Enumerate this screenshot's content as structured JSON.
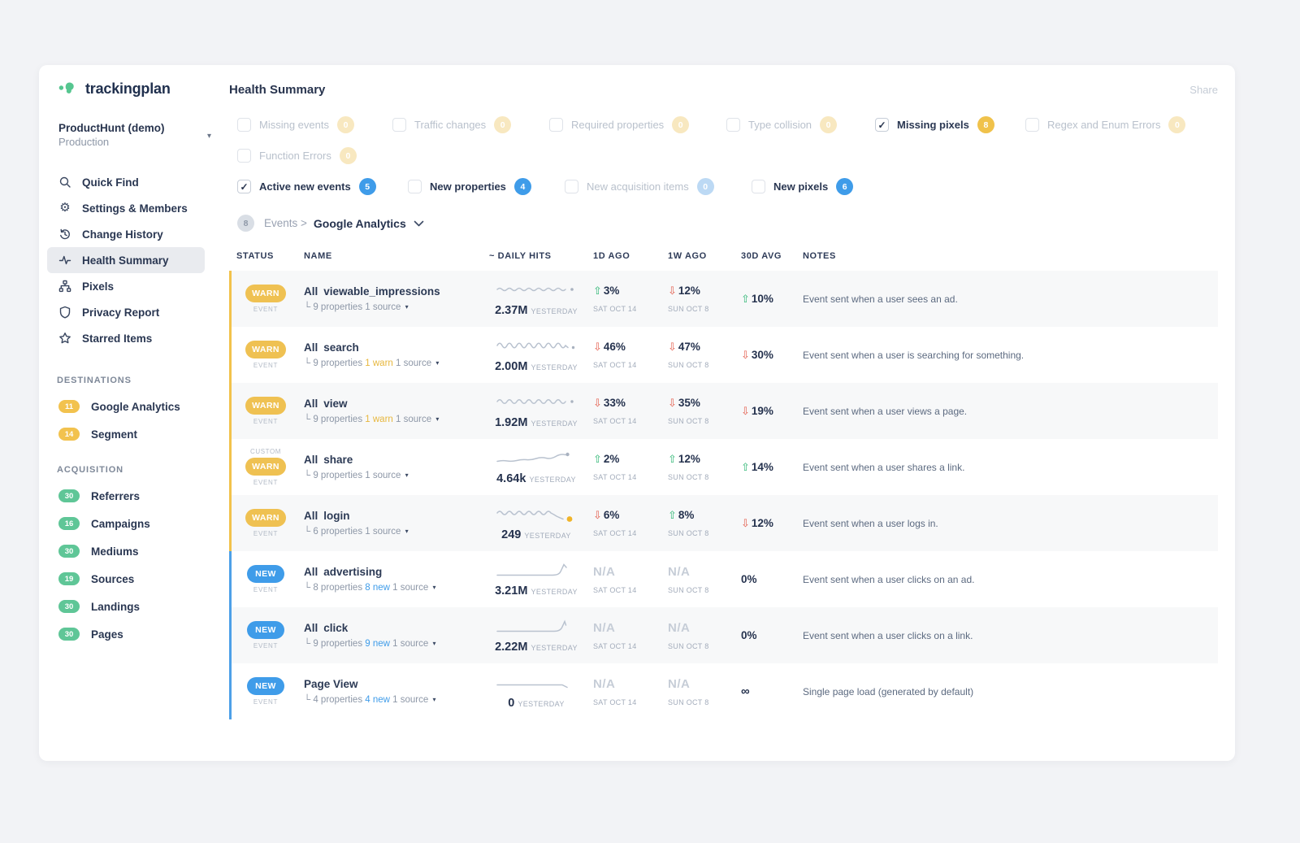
{
  "app": {
    "brand": "trackingplan",
    "page_title": "Health Summary",
    "share_label": "Share"
  },
  "ui": {
    "check_glyph": "✓",
    "caret_glyph": "▾",
    "arrow_up_glyph": "⇧",
    "arrow_down_glyph": "⇩",
    "colors": {
      "warn": "#f0c24b",
      "new": "#3f9ce9",
      "up_green": "#2eb673",
      "down_red": "#e45f4f",
      "destinations_badge": "#f2c24e",
      "acquisition_badge": "#5fc697",
      "spark_line": "#b9c2cf",
      "login_dot": "#f0b429"
    }
  },
  "sidebar": {
    "project": {
      "name": "ProductHunt (demo)",
      "env": "Production"
    },
    "nav": [
      {
        "label": "Quick Find",
        "icon": "search-icon"
      },
      {
        "label": "Settings & Members",
        "icon": "gear-icon"
      },
      {
        "label": "Change History",
        "icon": "history-icon"
      },
      {
        "label": "Health Summary",
        "icon": "pulse-icon",
        "active": true
      },
      {
        "label": "Pixels",
        "icon": "sitemap-icon"
      },
      {
        "label": "Privacy Report",
        "icon": "shield-icon"
      },
      {
        "label": "Starred Items",
        "icon": "star-icon"
      }
    ],
    "sections": [
      {
        "title": "DESTINATIONS",
        "badge_color": "#f2c24e",
        "items": [
          {
            "count": "11",
            "label": "Google Analytics"
          },
          {
            "count": "14",
            "label": "Segment"
          }
        ]
      },
      {
        "title": "ACQUISITION",
        "badge_color": "#5fc697",
        "items": [
          {
            "count": "30",
            "label": "Referrers"
          },
          {
            "count": "16",
            "label": "Campaigns"
          },
          {
            "count": "30",
            "label": "Mediums"
          },
          {
            "count": "19",
            "label": "Sources"
          },
          {
            "count": "30",
            "label": "Landings"
          },
          {
            "count": "30",
            "label": "Pages"
          }
        ]
      }
    ]
  },
  "filters": {
    "warn_row": [
      {
        "label": "Missing events",
        "count": "0",
        "checked": false,
        "muted": true
      },
      {
        "label": "Traffic changes",
        "count": "0",
        "checked": false,
        "muted": true
      },
      {
        "label": "Required properties",
        "count": "0",
        "checked": false,
        "muted": true
      },
      {
        "label": "Type collision",
        "count": "0",
        "checked": false,
        "muted": true
      },
      {
        "label": "Missing pixels",
        "count": "8",
        "checked": true,
        "muted": false
      },
      {
        "label": "Regex and Enum Errors",
        "count": "0",
        "checked": false,
        "muted": true
      },
      {
        "label": "Function Errors",
        "count": "0",
        "checked": false,
        "muted": true
      }
    ],
    "new_row": [
      {
        "label": "Active new events",
        "count": "5",
        "checked": true,
        "muted": false
      },
      {
        "label": "New properties",
        "count": "4",
        "checked": false,
        "muted": false
      },
      {
        "label": "New acquisition items",
        "count": "0",
        "checked": false,
        "muted": true
      },
      {
        "label": "New pixels",
        "count": "6",
        "checked": false,
        "muted": false
      }
    ]
  },
  "breadcrumb": {
    "count": "8",
    "path": "Events >",
    "current": "Google Analytics"
  },
  "table": {
    "headers": [
      "STATUS",
      "NAME",
      "~ DAILY HITS",
      "1D AGO",
      "1W AGO",
      "30D AVG",
      "NOTES"
    ],
    "rows": [
      {
        "status": "WARN",
        "type": "warn",
        "custom": "",
        "sub": "EVENT",
        "scope": "All",
        "event": "viewable_impressions",
        "props": "9 properties",
        "extra": "",
        "extra_type": "",
        "source": "1 source",
        "spark": "wavy_small",
        "hits": "2.37M",
        "hits_caption": "YESTERDAY",
        "d1": {
          "dir": "up",
          "value": "3%",
          "date": "SAT OCT 14"
        },
        "w1": {
          "dir": "down",
          "value": "12%",
          "date": "SUN OCT 8"
        },
        "avg": {
          "dir": "up",
          "value": "10%"
        },
        "note": "Event sent when a user sees an ad."
      },
      {
        "status": "WARN",
        "type": "warn",
        "custom": "",
        "sub": "EVENT",
        "scope": "All",
        "event": "search",
        "props": "9 properties",
        "extra": "1 warn",
        "extra_type": "warn",
        "source": "1 source",
        "spark": "wavy_big",
        "hits": "2.00M",
        "hits_caption": "YESTERDAY",
        "d1": {
          "dir": "down",
          "value": "46%",
          "date": "SAT OCT 14"
        },
        "w1": {
          "dir": "down",
          "value": "47%",
          "date": "SUN OCT 8"
        },
        "avg": {
          "dir": "down",
          "value": "30%"
        },
        "note": "Event sent when a user is searching for something."
      },
      {
        "status": "WARN",
        "type": "warn",
        "custom": "",
        "sub": "EVENT",
        "scope": "All",
        "event": "view",
        "props": "9 properties",
        "extra": "1 warn",
        "extra_type": "warn",
        "source": "1 source",
        "spark": "wavy_med",
        "hits": "1.92M",
        "hits_caption": "YESTERDAY",
        "d1": {
          "dir": "down",
          "value": "33%",
          "date": "SAT OCT 14"
        },
        "w1": {
          "dir": "down",
          "value": "35%",
          "date": "SUN OCT 8"
        },
        "avg": {
          "dir": "down",
          "value": "19%"
        },
        "note": "Event sent when a user views a page."
      },
      {
        "status": "WARN",
        "type": "warn",
        "custom": "CUSTOM",
        "sub": "EVENT",
        "scope": "All",
        "event": "share",
        "props": "9 properties",
        "extra": "",
        "extra_type": "",
        "source": "1 source",
        "spark": "rise",
        "hits": "4.64k",
        "hits_caption": "YESTERDAY",
        "d1": {
          "dir": "up",
          "value": "2%",
          "date": "SAT OCT 14"
        },
        "w1": {
          "dir": "up",
          "value": "12%",
          "date": "SUN OCT 8"
        },
        "avg": {
          "dir": "up",
          "value": "14%"
        },
        "note": "Event sent when a user shares a link."
      },
      {
        "status": "WARN",
        "type": "warn",
        "custom": "",
        "sub": "EVENT",
        "scope": "All",
        "event": "login",
        "props": "6 properties",
        "extra": "",
        "extra_type": "",
        "source": "1 source",
        "spark": "wavy_drop",
        "spark_dot": "#f0b429",
        "hits": "249",
        "hits_caption": "YESTERDAY",
        "d1": {
          "dir": "down",
          "value": "6%",
          "date": "SAT OCT 14"
        },
        "w1": {
          "dir": "up",
          "value": "8%",
          "date": "SUN OCT 8"
        },
        "avg": {
          "dir": "down",
          "value": "12%"
        },
        "note": "Event sent when a user logs in."
      },
      {
        "status": "NEW",
        "type": "new",
        "custom": "",
        "sub": "EVENT",
        "scope": "All",
        "event": "advertising",
        "props": "8 properties",
        "extra": "8 new",
        "extra_type": "new",
        "source": "1 source",
        "spark": "hockey",
        "hits": "3.21M",
        "hits_caption": "YESTERDAY",
        "d1": {
          "dir": "",
          "value": "N/A",
          "date": "SAT OCT 14"
        },
        "w1": {
          "dir": "",
          "value": "N/A",
          "date": "SUN OCT 8"
        },
        "avg": {
          "dir": "",
          "value": "0%"
        },
        "note": "Event sent when a user clicks on an ad."
      },
      {
        "status": "NEW",
        "type": "new",
        "custom": "",
        "sub": "EVENT",
        "scope": "All",
        "event": "click",
        "props": "9 properties",
        "extra": "9 new",
        "extra_type": "new",
        "source": "1 source",
        "spark": "hockey2",
        "hits": "2.22M",
        "hits_caption": "YESTERDAY",
        "d1": {
          "dir": "",
          "value": "N/A",
          "date": "SAT OCT 14"
        },
        "w1": {
          "dir": "",
          "value": "N/A",
          "date": "SUN OCT 8"
        },
        "avg": {
          "dir": "",
          "value": "0%"
        },
        "note": "Event sent when a user clicks on a link."
      },
      {
        "status": "NEW",
        "type": "new",
        "custom": "",
        "sub": "EVENT",
        "scope": "",
        "event": "Page View",
        "props": "4 properties",
        "extra": "4 new",
        "extra_type": "new",
        "source": "1 source",
        "spark": "flat_dip",
        "hits": "0",
        "hits_caption": "YESTERDAY",
        "d1": {
          "dir": "",
          "value": "N/A",
          "date": "SAT OCT 14"
        },
        "w1": {
          "dir": "",
          "value": "N/A",
          "date": "SUN OCT 8"
        },
        "avg": {
          "dir": "",
          "value": "∞"
        },
        "note": "Single page load (generated by default)"
      }
    ]
  }
}
